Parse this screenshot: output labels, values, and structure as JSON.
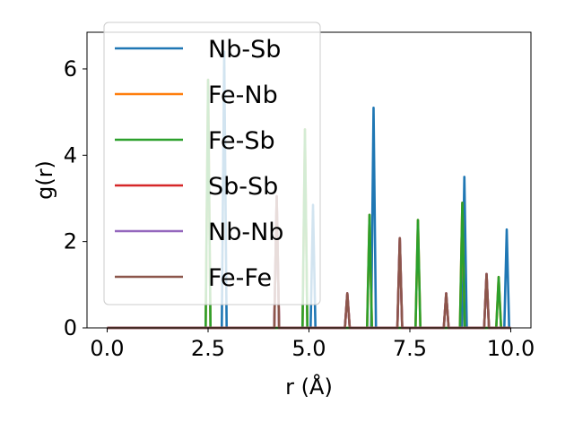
{
  "chart_data": {
    "type": "line",
    "xlabel": "r (Å)",
    "ylabel": "g(r)",
    "xlim": [
      -0.5,
      10.5
    ],
    "ylim": [
      0,
      6.85
    ],
    "xticks": [
      0.0,
      2.5,
      5.0,
      7.5,
      10.0
    ],
    "xtick_labels": [
      "0.0",
      "2.5",
      "5.0",
      "7.5",
      "10.0"
    ],
    "yticks": [
      0,
      2,
      4,
      6
    ],
    "ytick_labels": [
      "0",
      "2",
      "4",
      "6"
    ],
    "grid": false,
    "legend_position": "upper-left",
    "series": [
      {
        "name": "Nb-Sb",
        "color": "#1f77b4",
        "peaks": [
          [
            2.9,
            6.4
          ],
          [
            5.1,
            2.85
          ],
          [
            6.6,
            5.1
          ],
          [
            8.85,
            3.5
          ],
          [
            9.9,
            2.28
          ]
        ]
      },
      {
        "name": "Fe-Nb",
        "color": "#ff7f0e",
        "peaks": [
          [
            2.5,
            5.75
          ],
          [
            4.9,
            4.6
          ],
          [
            6.5,
            2.62
          ],
          [
            7.7,
            2.5
          ],
          [
            8.8,
            2.9
          ],
          [
            9.7,
            1.18
          ]
        ]
      },
      {
        "name": "Fe-Sb",
        "color": "#2ca02c",
        "peaks": [
          [
            2.5,
            5.75
          ],
          [
            4.9,
            4.6
          ],
          [
            6.5,
            2.62
          ],
          [
            7.7,
            2.5
          ],
          [
            8.8,
            2.9
          ],
          [
            9.7,
            1.18
          ]
        ]
      },
      {
        "name": "Sb-Sb",
        "color": "#d62728",
        "peaks": [
          [
            4.2,
            3.05
          ],
          [
            5.95,
            0.8
          ],
          [
            7.25,
            2.08
          ],
          [
            8.4,
            0.8
          ],
          [
            9.4,
            1.25
          ]
        ]
      },
      {
        "name": "Nb-Nb",
        "color": "#9467bd",
        "peaks": [
          [
            4.2,
            3.05
          ],
          [
            5.95,
            0.8
          ],
          [
            7.25,
            2.08
          ],
          [
            8.4,
            0.8
          ],
          [
            9.4,
            1.25
          ]
        ]
      },
      {
        "name": "Fe-Fe",
        "color": "#8c564b",
        "peaks": [
          [
            4.2,
            3.05
          ],
          [
            5.95,
            0.8
          ],
          [
            7.25,
            2.08
          ],
          [
            8.4,
            0.8
          ],
          [
            9.4,
            1.25
          ]
        ]
      }
    ]
  }
}
